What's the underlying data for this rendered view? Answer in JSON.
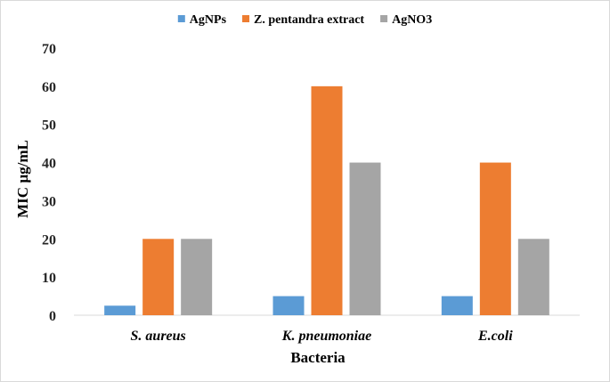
{
  "chart_data": {
    "type": "bar",
    "title": "",
    "xlabel": "Bacteria",
    "ylabel": "MIC µg/mL",
    "ylim": [
      0,
      70
    ],
    "yticks": [
      0,
      10,
      20,
      30,
      40,
      50,
      60,
      70
    ],
    "grid": false,
    "legend_position": "top-center",
    "categories": [
      "S. aureus",
      "K. pneumoniae",
      "E.coli"
    ],
    "series": [
      {
        "name": "AgNPs",
        "color": "#5b9bd5",
        "values": [
          2.5,
          5,
          5
        ]
      },
      {
        "name": "Z. pentandra extract",
        "color": "#ed7d31",
        "values": [
          20,
          60,
          40
        ]
      },
      {
        "name": "AgNO3",
        "color": "#a5a5a5",
        "values": [
          20,
          40,
          20
        ]
      }
    ]
  }
}
